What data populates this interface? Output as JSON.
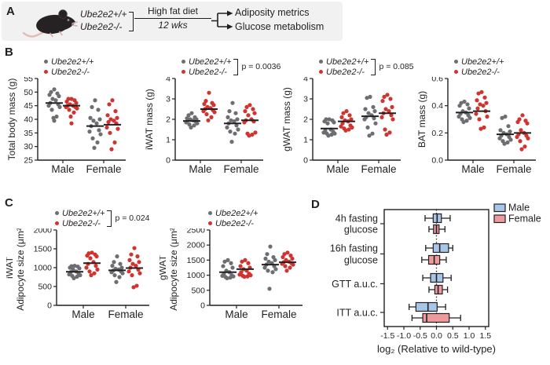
{
  "colors": {
    "wild_type_dot": "#6d6e71",
    "knockout_dot": "#cf3430",
    "ink": "#231f20",
    "male_box_fill": "#a8c6e8",
    "female_box_fill": "#ee9b9d",
    "panel_a_bg": "#f1f1f2"
  },
  "panels": {
    "a": {
      "label": "A",
      "genotype_wt": "Ube2e2+/+",
      "genotype_ko": "Ube2e2-/-",
      "diet": "High fat diet",
      "duration": "12 wks",
      "outcome1": "Adiposity metrics",
      "outcome2": "Glucose metabolism"
    },
    "b": {
      "label": "B"
    },
    "c": {
      "label": "C"
    },
    "d": {
      "label": "D"
    }
  },
  "chart_data": [
    {
      "type": "scatter",
      "panel": "B",
      "ylabel": [
        "Total body mass (g)"
      ],
      "ylim": [
        25,
        55
      ],
      "yticks": [
        "25",
        "30",
        "35",
        "40",
        "45",
        "50",
        "55"
      ],
      "ytick_values": [
        25,
        30,
        35,
        40,
        45,
        50,
        55
      ],
      "categories": [
        "Male",
        "Female"
      ],
      "legend": [
        "Ube2e2+/+",
        "Ube2e2-/-"
      ],
      "p_value": null,
      "series": [
        {
          "category": "Male",
          "genotype": "Ube2e2+/+",
          "mean": 46,
          "values": [
            51,
            50,
            49.5,
            49,
            48.5,
            47.5,
            47,
            46,
            45.5,
            45,
            44.5,
            43.5,
            41,
            40.5,
            39.5
          ]
        },
        {
          "category": "Male",
          "genotype": "Ube2e2-/-",
          "mean": 45,
          "values": [
            47.5,
            47.5,
            47,
            46.5,
            46,
            45.5,
            45,
            45,
            44.5,
            44.5,
            44,
            43.5,
            42.5,
            41,
            38.5
          ]
        },
        {
          "category": "Female",
          "genotype": "Ube2e2+/+",
          "mean": 37.5,
          "values": [
            47,
            44.5,
            43.5,
            40.5,
            40,
            39.5,
            38.5,
            37.5,
            36,
            35.5,
            34.5,
            33,
            31.5,
            29.5
          ]
        },
        {
          "category": "Female",
          "genotype": "Ube2e2-/-",
          "mean": 38,
          "values": [
            47,
            45.5,
            43,
            41.5,
            40.5,
            40,
            39.5,
            39,
            38.5,
            37,
            36.5,
            35,
            31.5,
            29
          ]
        }
      ]
    },
    {
      "type": "scatter",
      "panel": "B",
      "ylabel": [
        "iWAT mass (g)"
      ],
      "ylim": [
        0,
        4
      ],
      "yticks": [
        "0",
        "1",
        "2",
        "3",
        "4"
      ],
      "ytick_values": [
        0,
        1,
        2,
        3,
        4
      ],
      "categories": [
        "Male",
        "Female"
      ],
      "legend": [
        "Ube2e2+/+",
        "Ube2e2-/-"
      ],
      "p_value": "p = 0.0036",
      "series": [
        {
          "category": "Male",
          "genotype": "Ube2e2+/+",
          "mean": 1.92,
          "values": [
            2.3,
            2.2,
            2.1,
            2.05,
            2.0,
            2.0,
            1.95,
            1.95,
            1.9,
            1.85,
            1.8,
            1.75,
            1.7,
            1.6
          ]
        },
        {
          "category": "Male",
          "genotype": "Ube2e2-/-",
          "mean": 2.5,
          "values": [
            3.3,
            2.9,
            2.8,
            2.75,
            2.7,
            2.6,
            2.55,
            2.5,
            2.45,
            2.4,
            2.35,
            2.25,
            2.1,
            1.95
          ]
        },
        {
          "category": "Female",
          "genotype": "Ube2e2+/+",
          "mean": 1.8,
          "values": [
            2.8,
            2.4,
            2.3,
            2.1,
            2.0,
            1.95,
            1.9,
            1.8,
            1.7,
            1.6,
            1.5,
            1.4,
            1.3,
            0.9
          ]
        },
        {
          "category": "Female",
          "genotype": "Ube2e2-/-",
          "mean": 1.95,
          "values": [
            2.7,
            2.6,
            2.5,
            2.4,
            2.3,
            2.2,
            2.0,
            1.95,
            1.9,
            1.85,
            1.35,
            1.3,
            1.25,
            1.2
          ]
        }
      ]
    },
    {
      "type": "scatter",
      "panel": "B",
      "ylabel": [
        "gWAT mass (g)"
      ],
      "ylim": [
        0,
        4
      ],
      "yticks": [
        "0",
        "1",
        "2",
        "3",
        "4"
      ],
      "ytick_values": [
        0,
        1,
        2,
        3,
        4
      ],
      "categories": [
        "Male",
        "Female"
      ],
      "legend": [
        "Ube2e2+/+",
        "Ube2e2-/-"
      ],
      "p_value": "p = 0.085",
      "series": [
        {
          "category": "Male",
          "genotype": "Ube2e2+/+",
          "mean": 1.55,
          "values": [
            2.0,
            2.0,
            1.95,
            1.9,
            1.85,
            1.8,
            1.5,
            1.45,
            1.4,
            1.35,
            1.3,
            1.3,
            1.25,
            1.2
          ]
        },
        {
          "category": "Male",
          "genotype": "Ube2e2-/-",
          "mean": 1.9,
          "values": [
            2.4,
            2.3,
            2.2,
            2.1,
            2.0,
            1.95,
            1.9,
            1.8,
            1.7,
            1.65,
            1.6,
            1.55,
            1.5,
            1.45
          ]
        },
        {
          "category": "Female",
          "genotype": "Ube2e2+/+",
          "mean": 2.15,
          "values": [
            3.1,
            3.05,
            2.6,
            2.5,
            2.4,
            2.3,
            2.2,
            2.1,
            2.05,
            2.0,
            1.8,
            1.6,
            1.3,
            1.2
          ]
        },
        {
          "category": "Female",
          "genotype": "Ube2e2-/-",
          "mean": 2.3,
          "values": [
            3.2,
            3.1,
            3.0,
            2.9,
            2.6,
            2.5,
            2.4,
            2.3,
            2.2,
            2.1,
            2.0,
            1.5,
            1.35,
            1.25
          ]
        }
      ]
    },
    {
      "type": "scatter",
      "panel": "B",
      "ylabel": [
        "BAT mass (g)"
      ],
      "ylim": [
        0,
        0.6
      ],
      "yticks": [
        "0.0",
        "0.2",
        "0.4",
        "0.6"
      ],
      "ytick_values": [
        0,
        0.2,
        0.4,
        0.6
      ],
      "categories": [
        "Male",
        "Female"
      ],
      "legend": [
        "Ube2e2+/+",
        "Ube2e2-/-"
      ],
      "p_value": null,
      "series": [
        {
          "category": "Male",
          "genotype": "Ube2e2+/+",
          "mean": 0.35,
          "values": [
            0.43,
            0.42,
            0.41,
            0.4,
            0.38,
            0.36,
            0.35,
            0.34,
            0.33,
            0.32,
            0.31,
            0.3,
            0.29,
            0.28
          ]
        },
        {
          "category": "Male",
          "genotype": "Ube2e2-/-",
          "mean": 0.36,
          "values": [
            0.5,
            0.49,
            0.46,
            0.44,
            0.42,
            0.41,
            0.4,
            0.38,
            0.36,
            0.34,
            0.32,
            0.3,
            0.24,
            0.23
          ]
        },
        {
          "category": "Female",
          "genotype": "Ube2e2+/+",
          "mean": 0.19,
          "values": [
            0.32,
            0.31,
            0.25,
            0.22,
            0.21,
            0.2,
            0.19,
            0.18,
            0.17,
            0.16,
            0.15,
            0.14,
            0.13,
            0.12
          ]
        },
        {
          "category": "Female",
          "genotype": "Ube2e2-/-",
          "mean": 0.2,
          "values": [
            0.33,
            0.3,
            0.29,
            0.28,
            0.27,
            0.22,
            0.2,
            0.19,
            0.18,
            0.17,
            0.16,
            0.14,
            0.1,
            0.08
          ]
        }
      ]
    },
    {
      "type": "scatter",
      "panel": "C",
      "ylabel": [
        "iWAT",
        "Adipocyte size (μm²)"
      ],
      "ylim": [
        0,
        2000
      ],
      "yticks": [
        "0",
        "500",
        "1000",
        "1500",
        "2000"
      ],
      "ytick_values": [
        0,
        500,
        1000,
        1500,
        2000
      ],
      "categories": [
        "Male",
        "Female"
      ],
      "legend": [
        "Ube2e2+/+",
        "Ube2e2-/-"
      ],
      "p_value": "p = 0.024",
      "series": [
        {
          "category": "Male",
          "genotype": "Ube2e2+/+",
          "mean": 890,
          "values": [
            1050,
            1040,
            1030,
            1000,
            980,
            950,
            900,
            880,
            850,
            820,
            800,
            780,
            760,
            720
          ]
        },
        {
          "category": "Male",
          "genotype": "Ube2e2-/-",
          "mean": 1120,
          "values": [
            1400,
            1380,
            1350,
            1320,
            1300,
            1250,
            1150,
            1100,
            1050,
            1000,
            950,
            900,
            850,
            800
          ]
        },
        {
          "category": "Female",
          "genotype": "Ube2e2+/+",
          "mean": 930,
          "values": [
            1300,
            1150,
            1100,
            1050,
            1000,
            970,
            950,
            920,
            900,
            880,
            850,
            800,
            750,
            620
          ]
        },
        {
          "category": "Female",
          "genotype": "Ube2e2-/-",
          "mean": 990,
          "values": [
            1520,
            1350,
            1300,
            1200,
            1150,
            1100,
            1050,
            1000,
            950,
            900,
            850,
            800,
            520,
            480
          ]
        }
      ]
    },
    {
      "type": "scatter",
      "panel": "C",
      "ylabel": [
        "gWAT",
        "Adipocyte size (μm²)"
      ],
      "ylim": [
        0,
        2500
      ],
      "yticks": [
        "0",
        "500",
        "1000",
        "1500",
        "2000",
        "2500"
      ],
      "ytick_values": [
        0,
        500,
        1000,
        1500,
        2000,
        2500
      ],
      "categories": [
        "Male",
        "Female"
      ],
      "legend": [
        "Ube2e2+/+",
        "Ube2e2-/-"
      ],
      "p_value": null,
      "series": [
        {
          "category": "Male",
          "genotype": "Ube2e2+/+",
          "mean": 1100,
          "values": [
            1500,
            1450,
            1400,
            1300,
            1250,
            1150,
            1100,
            1050,
            1000,
            980,
            960,
            940,
            920,
            900
          ]
        },
        {
          "category": "Male",
          "genotype": "Ube2e2-/-",
          "mean": 1200,
          "values": [
            1500,
            1450,
            1400,
            1300,
            1250,
            1200,
            1150,
            1100,
            1050,
            1020,
            1000,
            980,
            960,
            950
          ]
        },
        {
          "category": "Female",
          "genotype": "Ube2e2+/+",
          "mean": 1350,
          "values": [
            1950,
            1700,
            1600,
            1550,
            1500,
            1450,
            1400,
            1350,
            1300,
            1250,
            1200,
            1150,
            1100,
            550
          ]
        },
        {
          "category": "Female",
          "genotype": "Ube2e2-/-",
          "mean": 1430,
          "values": [
            1750,
            1700,
            1650,
            1600,
            1550,
            1500,
            1450,
            1430,
            1400,
            1380,
            1350,
            1300,
            1250,
            1150
          ]
        }
      ]
    },
    {
      "type": "box",
      "panel": "D",
      "orientation": "horizontal",
      "categories": [
        [
          "4h fasting",
          "glucose"
        ],
        [
          "16h fasting",
          "glucose"
        ],
        [
          "GTT a.u.c."
        ],
        [
          "ITT a.u.c."
        ]
      ],
      "xlabel": "log₂ (Relative to wild-type)",
      "xlim": [
        -1.65,
        1.65
      ],
      "xticks": [
        "-1.5",
        "-1.0",
        "-0.5",
        "0.0",
        "0.5",
        "1.0",
        "1.5"
      ],
      "xtick_values": [
        -1.5,
        -1.0,
        -0.5,
        0.0,
        0.5,
        1.0,
        1.5
      ],
      "reference_line": 0,
      "series": [
        {
          "name": "Male",
          "color": "#a8c6e8",
          "boxes": [
            {
              "low": -0.35,
              "q1": -0.1,
              "median": 0.02,
              "q3": 0.15,
              "high": 0.42
            },
            {
              "low": -0.33,
              "q1": -0.1,
              "median": 0.1,
              "q3": 0.37,
              "high": 0.5
            },
            {
              "low": -0.42,
              "q1": -0.18,
              "median": 0.0,
              "q3": 0.2,
              "high": 0.45
            },
            {
              "low": -0.84,
              "q1": -0.63,
              "median": -0.26,
              "q3": 0.02,
              "high": 0.28
            }
          ]
        },
        {
          "name": "Female",
          "color": "#ee9b9d",
          "boxes": [
            {
              "low": -0.23,
              "q1": -0.09,
              "median": 0.0,
              "q3": 0.08,
              "high": 0.26
            },
            {
              "low": -0.45,
              "q1": -0.24,
              "median": -0.07,
              "q3": 0.1,
              "high": 0.3
            },
            {
              "low": -0.23,
              "q1": -0.05,
              "median": 0.05,
              "q3": 0.18,
              "high": 0.34
            },
            {
              "low": -0.75,
              "q1": -0.42,
              "median": -0.3,
              "q3": 0.39,
              "high": 0.74
            }
          ]
        }
      ]
    }
  ]
}
